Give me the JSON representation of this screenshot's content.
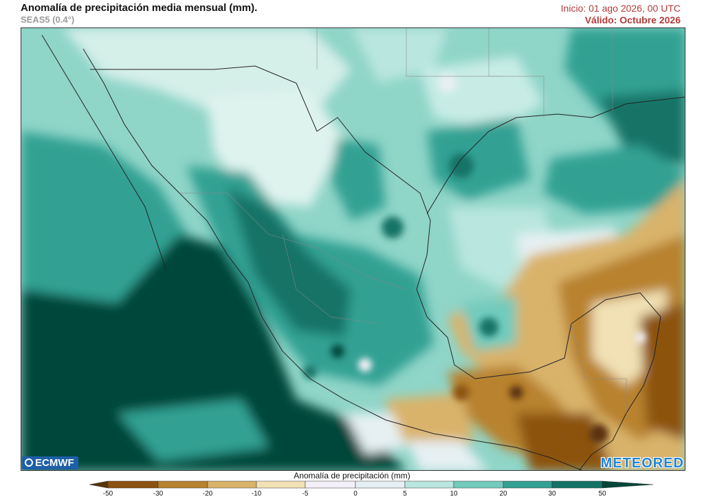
{
  "header": {
    "title": "Anomalía de precipitación media mensual (mm).",
    "subtitle": "SEAS5 (0.4°)",
    "init": "Inicio: 01 ago 2026, 00 UTC",
    "valid": "Válido: Octubre 2026"
  },
  "logos": {
    "left": "ECMWF",
    "right": "METEORED"
  },
  "colorbar": {
    "title": "Anomalía de precipitación (mm)",
    "ticks": [
      "-50",
      "-30",
      "-20",
      "-10",
      "-5",
      "0",
      "5",
      "10",
      "20",
      "30",
      "50"
    ],
    "colors": [
      "#5a3308",
      "#8c5211",
      "#b8822e",
      "#d9b36a",
      "#f1e1b4",
      "#f4f0f7",
      "#e6f0f2",
      "#b9e6de",
      "#72cbbd",
      "#33a193",
      "#147366",
      "#05463b"
    ]
  }
}
